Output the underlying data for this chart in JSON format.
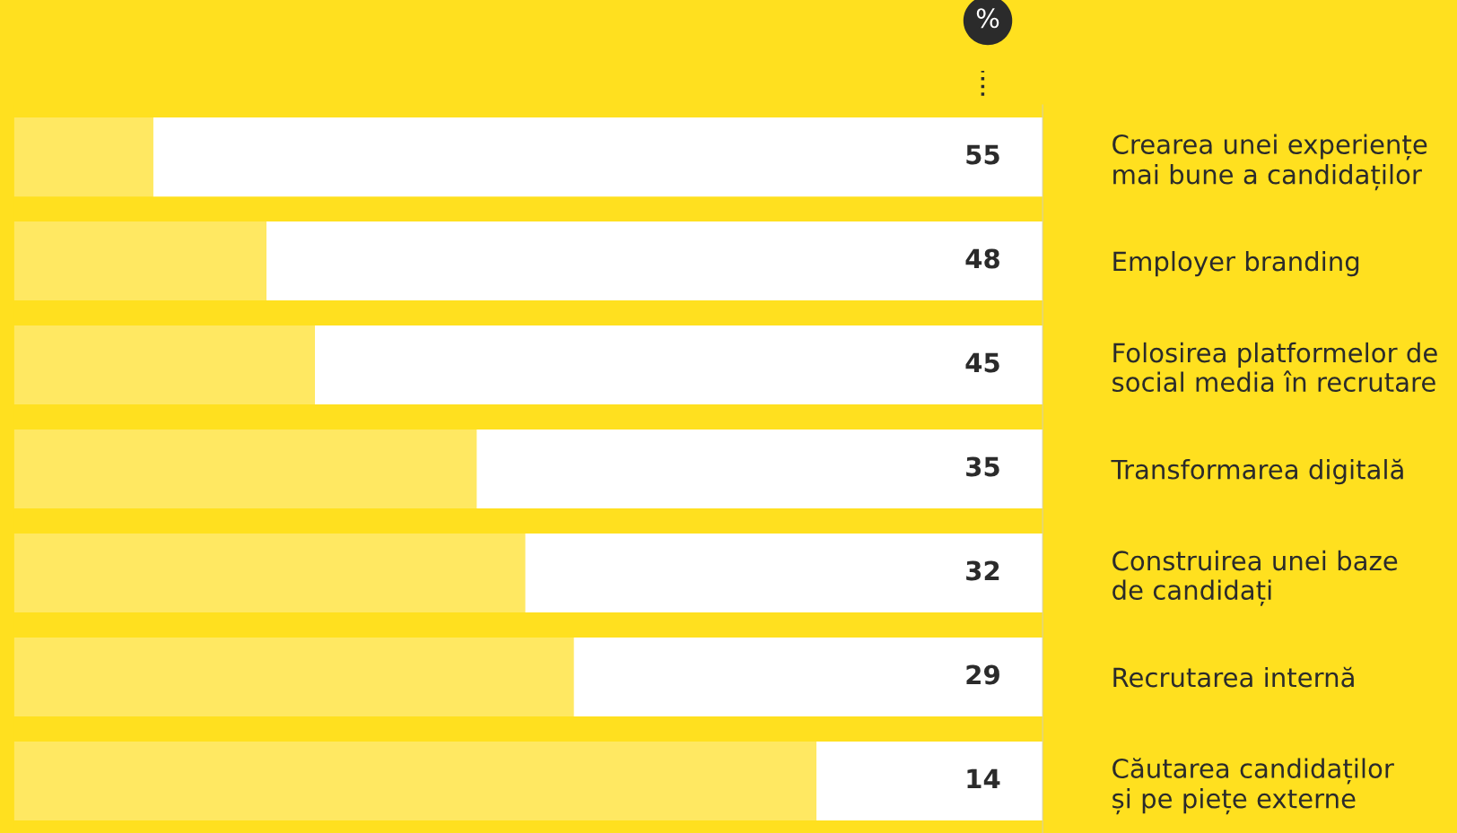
{
  "chart_data": {
    "type": "bar",
    "orientation": "horizontal",
    "stacked": true,
    "xlabel": "%",
    "categories": [
      "Crearea unei experiențe\nmai bune a candidaților",
      "Employer branding",
      "Folosirea platformelor de\nsocial media în recrutare",
      "Transformarea digitală",
      "Construirea unei baze\nde candidați",
      "Recrutarea internă",
      "Căutarea candidaților\nși pe piețe externe"
    ],
    "series": [
      {
        "color": "#ffffff",
        "values": [
          55,
          48,
          45,
          35,
          32,
          29,
          14
        ],
        "value_labels": [
          "55",
          "48",
          "45",
          "35",
          "32",
          "29",
          "14"
        ]
      },
      {
        "color": "#ffe862",
        "values": [
          8.6,
          15.6,
          18.6,
          28.6,
          31.6,
          34.6,
          49.6
        ]
      }
    ],
    "xlim": [
      63.6,
      0
    ],
    "tick_labels": "y",
    "grid": false,
    "legend": false
  }
}
